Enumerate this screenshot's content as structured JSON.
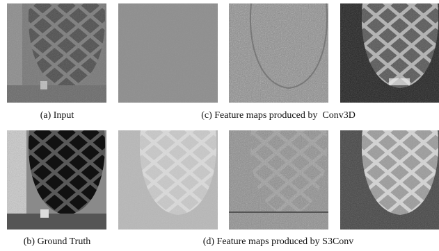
{
  "captions": [
    "(a) Input",
    "(c) Feature maps produced by  Conv3D",
    "(b) Ground Truth",
    "(d) Feature maps produced by S3Conv"
  ]
}
